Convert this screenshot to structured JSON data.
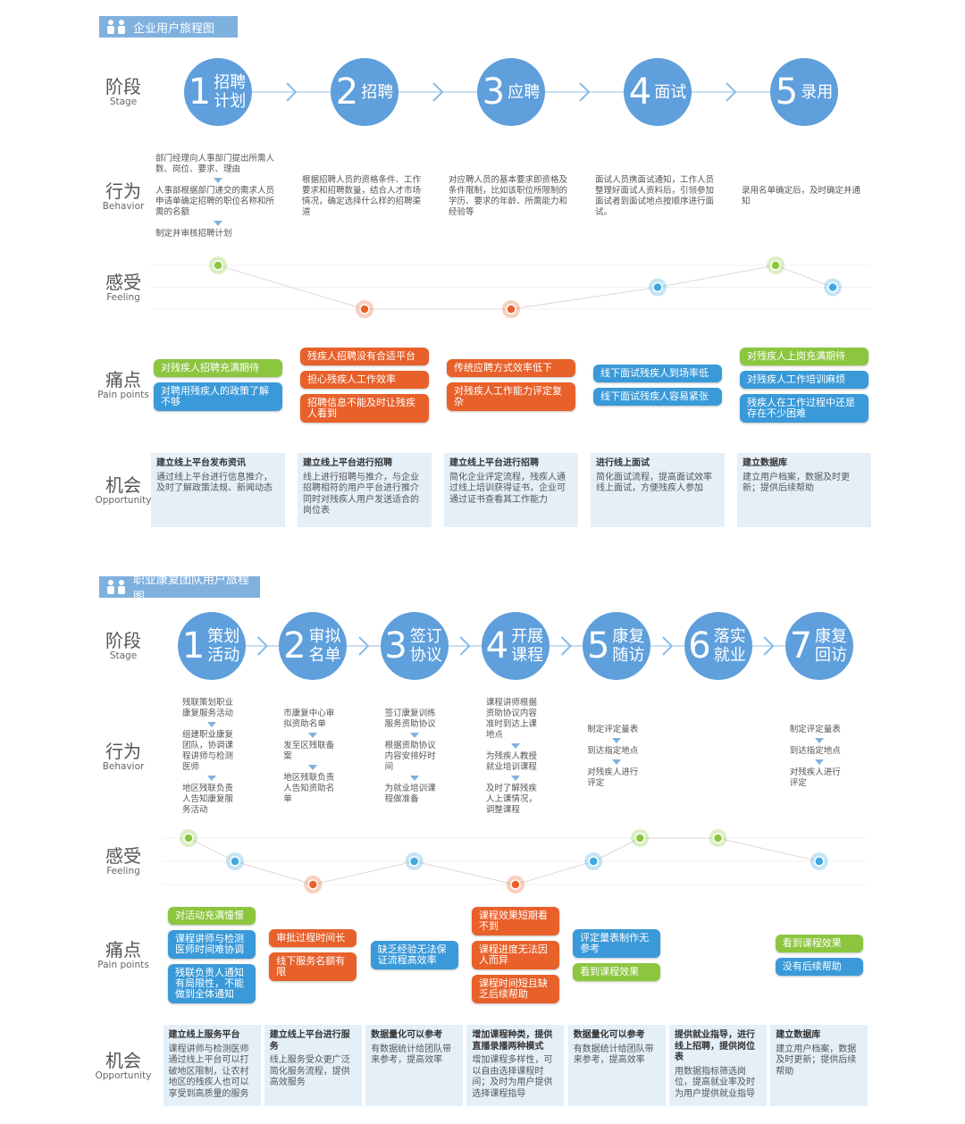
{
  "journeys": [
    {
      "title": "企业用户旅程图",
      "rows": [
        {
          "cn": "阶段",
          "en": "Stage"
        },
        {
          "cn": "行为",
          "en": "Behavior"
        },
        {
          "cn": "感受",
          "en": "Feeling"
        },
        {
          "cn": "痛点",
          "en": "Pain points"
        },
        {
          "cn": "机会",
          "en": "Opportunity"
        }
      ],
      "stages": [
        {
          "number": "1",
          "name": "招聘计划",
          "behavior": [
            "部门经理向人事部门提出所需人数、岗位、要求、理由",
            "人事部根据部门递交的需求人员申请单确定招聘的职位名称和所需的名额",
            "制定并审核招聘计划"
          ],
          "feeling": [
            1
          ],
          "pain_points": [
            {
              "text": "对残疾人招聘充满期待",
              "color": "#8cc63f"
            },
            {
              "text": "对聘用残疾人的政策了解不够",
              "color": "#3a9ad9"
            }
          ],
          "opportunity": {
            "title": "建立线上平台发布资讯",
            "text": "通过线上平台进行信息推介，及时了解政策法规、新闻动态"
          }
        },
        {
          "number": "2",
          "name": "招聘",
          "behavior": [
            "根据招聘人员的资格条件、工作要求和招聘数量，结合人才市场情况，确定选择什么样的招聘渠道"
          ],
          "feeling": [
            -1
          ],
          "pain_points": [
            {
              "text": "残疾人招聘没有合适平台",
              "color": "#e8602a"
            },
            {
              "text": "担心残疾人工作效率",
              "color": "#e8602a"
            },
            {
              "text": "招聘信息不能及时让残疾人看到",
              "color": "#e8602a"
            }
          ],
          "opportunity": {
            "title": "建立线上平台进行招聘",
            "text": "线上进行招聘与推介，与企业招聘相符的用户平台进行推介同时对残疾人用户发送适合的岗位表"
          }
        },
        {
          "number": "3",
          "name": "应聘",
          "behavior": [
            "对应聘人员的基本要求即资格及条件限制，比如该职位所限制的学历、要求的年龄、所需能力和经验等"
          ],
          "feeling": [
            -1
          ],
          "pain_points": [
            {
              "text": "传统应聘方式效率低下",
              "color": "#e8602a"
            },
            {
              "text": "对残疾人工作能力评定复杂",
              "color": "#e8602a"
            }
          ],
          "opportunity": {
            "title": "建立线上平台进行招聘",
            "text": "简化企业评定流程，残疾人通过线上培训获得证书，企业可通过证书查看其工作能力"
          }
        },
        {
          "number": "4",
          "name": "面试",
          "behavior": [
            "面试人员携面试通知，工作人员整理好面试人资料后，引领参加面试者到面试地点按顺序进行面试。"
          ],
          "feeling": [
            0
          ],
          "pain_points": [
            {
              "text": "线下面试残疾人到场率低",
              "color": "#3a9ad9"
            },
            {
              "text": "线下面试残疾人容易紧张",
              "color": "#3a9ad9"
            }
          ],
          "opportunity": {
            "title": "进行线上面试",
            "text": "简化面试流程，提高面试效率线上面试，方便残疾人参加"
          }
        },
        {
          "number": "5",
          "name": "录用",
          "behavior": [
            "录用名单确定后，及时确定并通知"
          ],
          "feeling": [
            1,
            0
          ],
          "pain_points": [
            {
              "text": "对残疾人上岗充满期待",
              "color": "#8cc63f"
            },
            {
              "text": "对残疾人工作培训麻烦",
              "color": "#3a9ad9"
            },
            {
              "text": "残疾人在工作过程中还是存在不少困难",
              "color": "#3a9ad9"
            }
          ],
          "opportunity": {
            "title": "建立数据库",
            "text": "建立用户档案，数据及时更新；提供后续帮助"
          }
        }
      ]
    },
    {
      "title": "职业康复团队用户旅程图",
      "rows": [
        {
          "cn": "阶段",
          "en": "Stage"
        },
        {
          "cn": "行为",
          "en": "Behavior"
        },
        {
          "cn": "感受",
          "en": "Feeling"
        },
        {
          "cn": "痛点",
          "en": "Pain points"
        },
        {
          "cn": "机会",
          "en": "Opportunity"
        }
      ],
      "stages": [
        {
          "number": "1",
          "name": "策划活动",
          "behavior": [
            "残联策划职业康复服务活动",
            "组建职业康复团队，协调课程讲师与检测医师",
            "地区残联负责人告知康复服务活动"
          ],
          "feeling": [
            1,
            0
          ],
          "pain_points": [
            {
              "text": "对活动充满憧憬",
              "color": "#8cc63f"
            },
            {
              "text": "课程讲师与检测医师时间难协调",
              "color": "#3a9ad9"
            },
            {
              "text": "残联负责人通知有局限性，不能做到全体通知",
              "color": "#3a9ad9"
            }
          ],
          "opportunity": {
            "title": "建立线上服务平台",
            "text": "课程讲师与检测医师通过线上平台可以打破地区限制，让农村地区的残疾人也可以享受到高质量的服务"
          }
        },
        {
          "number": "2",
          "name": "审拟名单",
          "behavior": [
            "市康复中心审拟资助名单",
            "发至区残联备案",
            "地区残联负责人告知资助名单"
          ],
          "feeling": [
            -1
          ],
          "pain_points": [
            {
              "text": "审批过程时间长",
              "color": "#e8602a"
            },
            {
              "text": "线下服务名额有限",
              "color": "#e8602a"
            }
          ],
          "opportunity": {
            "title": "建立线上平台进行服务",
            "text": "线上服务受众更广泛简化服务流程，提供高效服务"
          }
        },
        {
          "number": "3",
          "name": "签订协议",
          "behavior": [
            "签订康复训练服务资助协议",
            "根据资助协议内容安排好时间",
            "为就业培训课程做准备"
          ],
          "feeling": [
            0
          ],
          "pain_points": [
            {
              "text": "缺乏经验无法保证流程高效率",
              "color": "#3a9ad9"
            }
          ],
          "opportunity": {
            "title": "数据量化可以参考",
            "text": "有数据统计给团队带来参考，提高效率"
          }
        },
        {
          "number": "4",
          "name": "开展课程",
          "behavior": [
            "课程讲师根据资助协议内容准时到达上课地点",
            "为残疾人教授就业培训课程",
            "及时了解残疾人上课情况，调整课程"
          ],
          "feeling": [
            -1
          ],
          "pain_points": [
            {
              "text": "课程效果短期看不到",
              "color": "#e8602a"
            },
            {
              "text": "课程进度无法因人而异",
              "color": "#e8602a"
            },
            {
              "text": "课程时间短且缺乏后续帮助",
              "color": "#e8602a"
            }
          ],
          "opportunity": {
            "title": "增加课程种类，提供直播录播两种模式",
            "text": "增加课程多样性，可以自由选择课程时间；及时为用户提供选择课程指导"
          }
        },
        {
          "number": "5",
          "name": "康复随访",
          "behavior": [
            "制定评定量表",
            "到达指定地点",
            "对残疾人进行评定"
          ],
          "feeling": [
            0,
            1
          ],
          "pain_points": [
            {
              "text": "评定量表制作无参考",
              "color": "#3a9ad9"
            },
            {
              "text": "看到课程效果",
              "color": "#8cc63f"
            }
          ],
          "opportunity": {
            "title": "数据量化可以参考",
            "text": "有数据统计给团队带来参考，提高效率"
          }
        },
        {
          "number": "6",
          "name": "落实就业",
          "behavior": [],
          "feeling": [
            1
          ],
          "pain_points": [],
          "opportunity": {
            "title": "提供就业指导，进行线上招聘，提供岗位表",
            "text": "用数据指标筛选岗位，提高就业率及时为用户提供就业指导"
          }
        },
        {
          "number": "7",
          "name": "康复回访",
          "behavior": [
            "制定评定量表",
            "到达指定地点",
            "对残疾人进行评定"
          ],
          "feeling": [
            0
          ],
          "pain_points": [
            {
              "text": "看到课程效果",
              "color": "#8cc63f"
            },
            {
              "text": "没有后续帮助",
              "color": "#3a9ad9"
            }
          ],
          "opportunity": {
            "title": "建立数据库",
            "text": "建立用户档案，数据及时更新；提供后续帮助"
          }
        }
      ]
    }
  ]
}
